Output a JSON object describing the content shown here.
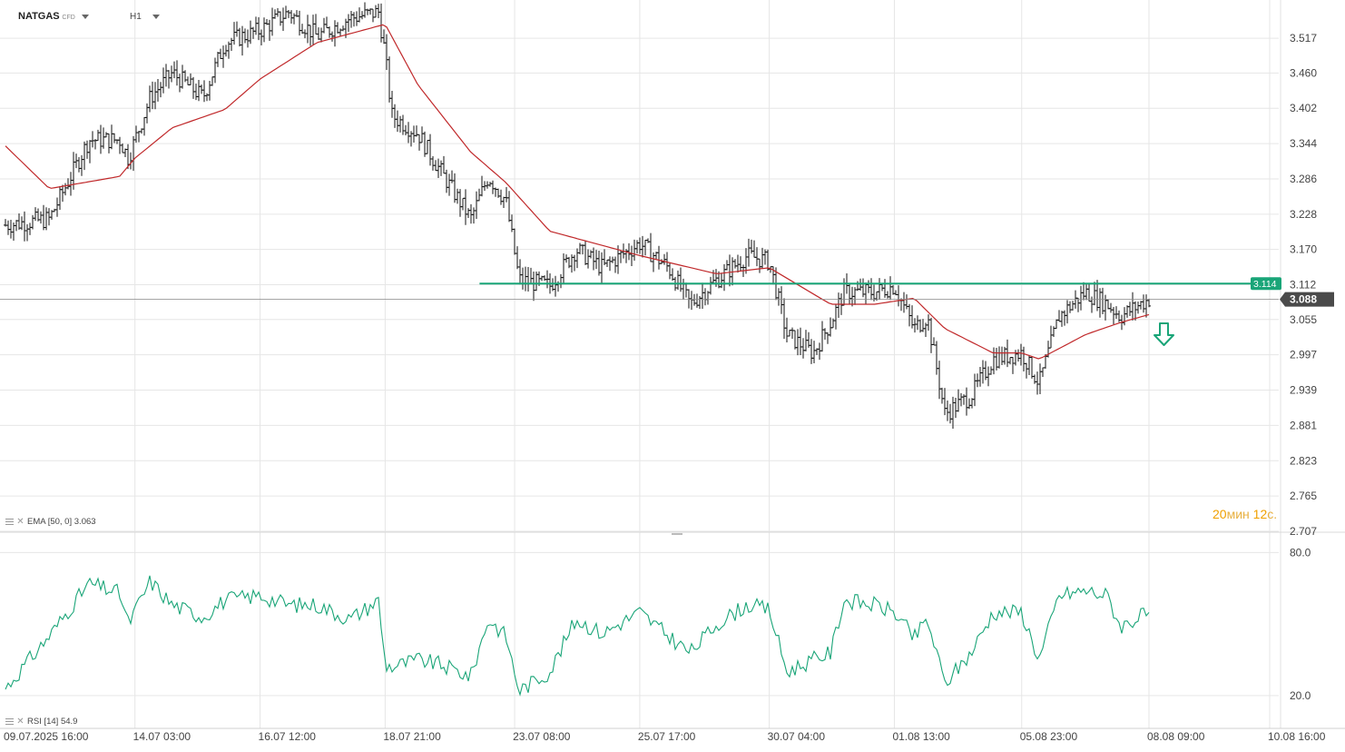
{
  "header": {
    "symbol": "NATGAS",
    "instrument_type": "CFD",
    "timeframe": "H1"
  },
  "indicators": {
    "ema_label": "EMA [50, 0]",
    "ema_value": "3.063",
    "rsi_label": "RSI [14]",
    "rsi_value": "54.9"
  },
  "timer": {
    "min_value": "20",
    "min_unit": "мин",
    "sec_value": "12",
    "sec_unit": "с."
  },
  "colors": {
    "candle": "#111111",
    "ema": "#c0282a",
    "support_line": "#1aa578",
    "rsi": "#1aa578",
    "price_badge": "#4a4a4a",
    "level_badge": "#1aa578",
    "grid": "#e6e6e6",
    "down_arrow": "#1aa578"
  },
  "chart_data": {
    "type": "candlestick",
    "price_axis_ticks": [
      "3.517",
      "3.460",
      "3.402",
      "3.344",
      "3.286",
      "3.228",
      "3.170",
      "3.112",
      "3.055",
      "2.997",
      "2.939",
      "2.881",
      "2.823",
      "2.765",
      "2.707"
    ],
    "price_range": [
      2.707,
      3.55
    ],
    "current_price": "3.088",
    "horizontal_level": "3.114",
    "horizontal_level_start": "22.07 16:00",
    "time_axis_labels": [
      "09.07.2025  16:00",
      "14.07  03:00",
      "16.07  12:00",
      "18.07  21:00",
      "23.07  08:00",
      "25.07  17:00",
      "30.07  04:00",
      "01.08  13:00",
      "05.08  23:00",
      "08.08  09:00",
      "10.08  16:00"
    ],
    "price_keypoints": [
      {
        "t": "09.07.2025 16:00",
        "close": 3.21
      },
      {
        "t": "10.07 12:00",
        "close": 3.22
      },
      {
        "t": "11.07 06:00",
        "close": 3.35
      },
      {
        "t": "11.07 20:00",
        "close": 3.35
      },
      {
        "t": "14.07 00:00",
        "close": 3.32
      },
      {
        "t": "14.07 10:00",
        "close": 3.42
      },
      {
        "t": "14.07 20:00",
        "close": 3.46
      },
      {
        "t": "15.07 10:00",
        "close": 3.42
      },
      {
        "t": "15.07 20:00",
        "close": 3.51
      },
      {
        "t": "16.07 12:00",
        "close": 3.53
      },
      {
        "t": "17.07 01:00",
        "close": 3.56
      },
      {
        "t": "17.07 14:00",
        "close": 3.52
      },
      {
        "t": "18.07 05:00",
        "close": 3.55
      },
      {
        "t": "18.07 18:00",
        "close": 3.56
      },
      {
        "t": "18.07 21:00",
        "close": 3.49
      },
      {
        "t": "21.07 00:00",
        "close": 3.39
      },
      {
        "t": "21.07 12:00",
        "close": 3.36
      },
      {
        "t": "21.07 22:00",
        "close": 3.3
      },
      {
        "t": "22.07 12:00",
        "close": 3.22
      },
      {
        "t": "22.07 20:00",
        "close": 3.29
      },
      {
        "t": "23.07 04:00",
        "close": 3.25
      },
      {
        "t": "23.07 10:00",
        "close": 3.12
      },
      {
        "t": "24.07 00:00",
        "close": 3.11
      },
      {
        "t": "24.07 12:00",
        "close": 3.17
      },
      {
        "t": "25.07 00:00",
        "close": 3.14
      },
      {
        "t": "25.07 17:00",
        "close": 3.18
      },
      {
        "t": "28.07 06:00",
        "close": 3.14
      },
      {
        "t": "28.07 16:00",
        "close": 3.08
      },
      {
        "t": "29.07 04:00",
        "close": 3.12
      },
      {
        "t": "29.07 18:00",
        "close": 3.16
      },
      {
        "t": "30.07 04:00",
        "close": 3.15
      },
      {
        "t": "30.07 12:00",
        "close": 3.03
      },
      {
        "t": "31.07 00:00",
        "close": 3.0
      },
      {
        "t": "31.07 08:00",
        "close": 3.05
      },
      {
        "t": "31.07 14:00",
        "close": 3.1
      },
      {
        "t": "01.08 04:00",
        "close": 3.1
      },
      {
        "t": "01.08 13:00",
        "close": 3.11
      },
      {
        "t": "01.08 22:00",
        "close": 3.04
      },
      {
        "t": "04.08 04:00",
        "close": 3.06
      },
      {
        "t": "04.08 12:00",
        "close": 2.9
      },
      {
        "t": "05.08 00:00",
        "close": 2.93
      },
      {
        "t": "05.08 10:00",
        "close": 2.99
      },
      {
        "t": "05.08 23:00",
        "close": 3.0
      },
      {
        "t": "06.08 07:00",
        "close": 2.95
      },
      {
        "t": "06.08 16:00",
        "close": 3.06
      },
      {
        "t": "07.08 04:00",
        "close": 3.1
      },
      {
        "t": "07.08 14:00",
        "close": 3.08
      },
      {
        "t": "07.08 20:00",
        "close": 3.06
      },
      {
        "t": "08.08 05:00",
        "close": 3.08
      },
      {
        "t": "08.08 09:00",
        "close": 3.088
      }
    ],
    "ema_keypoints": [
      {
        "t": "09.07.2025 16:00",
        "value": 3.34
      },
      {
        "t": "10.07 12:00",
        "value": 3.27
      },
      {
        "t": "11.07 20:00",
        "value": 3.29
      },
      {
        "t": "14.07 03:00",
        "value": 3.32
      },
      {
        "t": "14.07 20:00",
        "value": 3.37
      },
      {
        "t": "15.07 20:00",
        "value": 3.4
      },
      {
        "t": "16.07 12:00",
        "value": 3.45
      },
      {
        "t": "17.07 14:00",
        "value": 3.51
      },
      {
        "t": "18.07 21:00",
        "value": 3.54
      },
      {
        "t": "21.07 12:00",
        "value": 3.44
      },
      {
        "t": "22.07 12:00",
        "value": 3.33
      },
      {
        "t": "23.07 04:00",
        "value": 3.28
      },
      {
        "t": "24.07 00:00",
        "value": 3.2
      },
      {
        "t": "25.07 17:00",
        "value": 3.16
      },
      {
        "t": "29.07 04:00",
        "value": 3.13
      },
      {
        "t": "30.07 04:00",
        "value": 3.14
      },
      {
        "t": "31.07 08:00",
        "value": 3.08
      },
      {
        "t": "01.08 04:00",
        "value": 3.08
      },
      {
        "t": "01.08 22:00",
        "value": 3.09
      },
      {
        "t": "04.08 12:00",
        "value": 3.04
      },
      {
        "t": "05.08 10:00",
        "value": 3.0
      },
      {
        "t": "05.08 23:00",
        "value": 3.0
      },
      {
        "t": "06.08 07:00",
        "value": 2.99
      },
      {
        "t": "07.08 04:00",
        "value": 3.03
      },
      {
        "t": "07.08 20:00",
        "value": 3.05
      },
      {
        "t": "08.08 09:00",
        "value": 3.063
      }
    ],
    "rsi_axis_ticks": [
      "80.0",
      "20.0"
    ],
    "rsi_range": [
      7,
      87
    ],
    "rsi_keypoints": [
      {
        "t": "09.07.2025 16:00",
        "value": 23
      },
      {
        "t": "10.07 12:00",
        "value": 45
      },
      {
        "t": "11.07 06:00",
        "value": 67
      },
      {
        "t": "11.07 20:00",
        "value": 63
      },
      {
        "t": "14.07 00:00",
        "value": 50
      },
      {
        "t": "14.07 10:00",
        "value": 68
      },
      {
        "t": "14.07 20:00",
        "value": 58
      },
      {
        "t": "15.07 10:00",
        "value": 53
      },
      {
        "t": "15.07 20:00",
        "value": 60
      },
      {
        "t": "16.07 12:00",
        "value": 62
      },
      {
        "t": "17.07 01:00",
        "value": 58
      },
      {
        "t": "17.07 14:00",
        "value": 58
      },
      {
        "t": "18.07 05:00",
        "value": 52
      },
      {
        "t": "18.07 18:00",
        "value": 60
      },
      {
        "t": "18.07 21:00",
        "value": 33
      },
      {
        "t": "21.07 00:00",
        "value": 32
      },
      {
        "t": "21.07 12:00",
        "value": 35
      },
      {
        "t": "21.07 22:00",
        "value": 33
      },
      {
        "t": "22.07 12:00",
        "value": 28
      },
      {
        "t": "22.07 20:00",
        "value": 52
      },
      {
        "t": "23.07 04:00",
        "value": 45
      },
      {
        "t": "23.07 10:00",
        "value": 22
      },
      {
        "t": "24.07 00:00",
        "value": 30
      },
      {
        "t": "24.07 12:00",
        "value": 52
      },
      {
        "t": "25.07 00:00",
        "value": 46
      },
      {
        "t": "25.07 17:00",
        "value": 55
      },
      {
        "t": "28.07 06:00",
        "value": 45
      },
      {
        "t": "28.07 16:00",
        "value": 38
      },
      {
        "t": "29.07 04:00",
        "value": 50
      },
      {
        "t": "29.07 18:00",
        "value": 58
      },
      {
        "t": "30.07 04:00",
        "value": 56
      },
      {
        "t": "30.07 12:00",
        "value": 30
      },
      {
        "t": "31.07 00:00",
        "value": 35
      },
      {
        "t": "31.07 08:00",
        "value": 38
      },
      {
        "t": "31.07 14:00",
        "value": 60
      },
      {
        "t": "01.08 04:00",
        "value": 58
      },
      {
        "t": "01.08 13:00",
        "value": 55
      },
      {
        "t": "01.08 22:00",
        "value": 44
      },
      {
        "t": "04.08 04:00",
        "value": 52
      },
      {
        "t": "04.08 12:00",
        "value": 25
      },
      {
        "t": "05.08 00:00",
        "value": 38
      },
      {
        "t": "05.08 10:00",
        "value": 55
      },
      {
        "t": "05.08 23:00",
        "value": 55
      },
      {
        "t": "06.08 07:00",
        "value": 35
      },
      {
        "t": "06.08 16:00",
        "value": 62
      },
      {
        "t": "07.08 04:00",
        "value": 64
      },
      {
        "t": "07.08 14:00",
        "value": 62
      },
      {
        "t": "07.08 20:00",
        "value": 49
      },
      {
        "t": "08.08 05:00",
        "value": 53
      },
      {
        "t": "08.08 09:00",
        "value": 54.9
      }
    ]
  }
}
